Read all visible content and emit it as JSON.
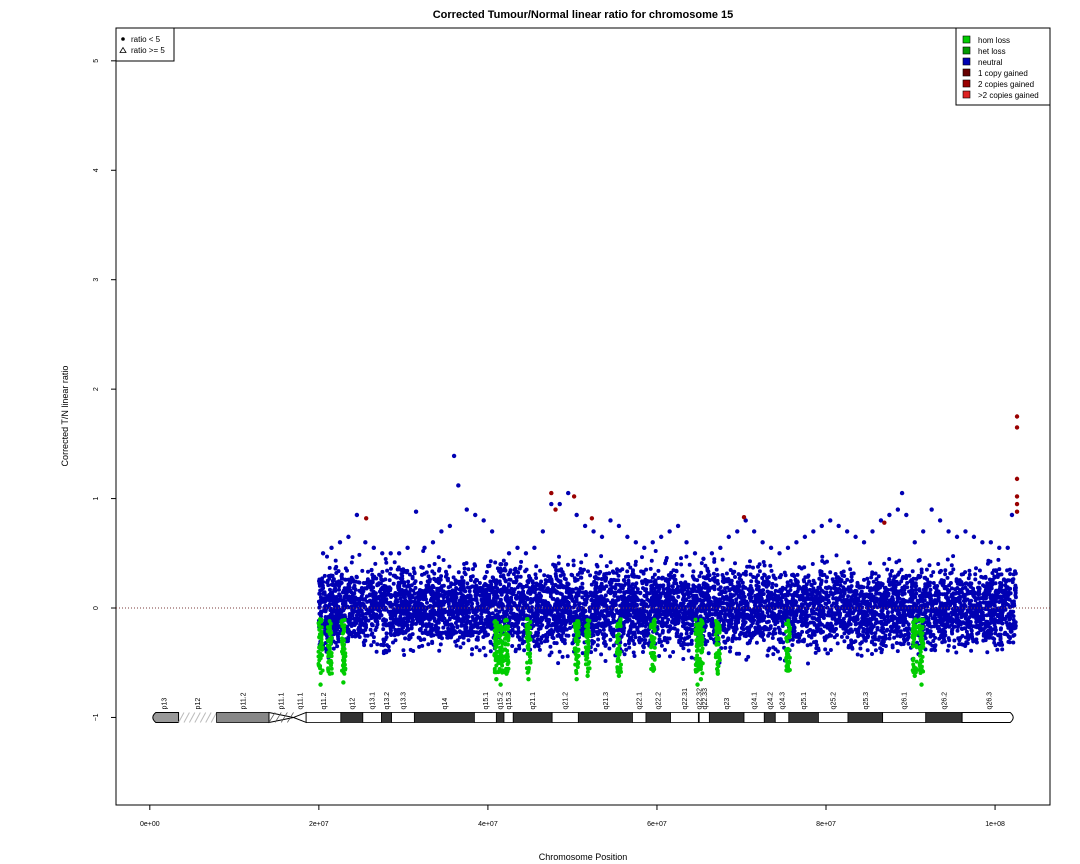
{
  "chart_data": {
    "type": "scatter",
    "title": "Corrected Tumour/Normal linear ratio for chromosome  15",
    "xlabel": "Chromosome Position",
    "ylabel": "Corrected T/N linear ratio",
    "xlim": [
      -4000000,
      106500000
    ],
    "ylim": [
      -1.8,
      5.3
    ],
    "xticks": [
      0,
      20000000,
      40000000,
      60000000,
      80000000,
      100000000
    ],
    "xtick_labels": [
      "0e+00",
      "2e+07",
      "4e+07",
      "6e+07",
      "8e+07",
      "1e+08"
    ],
    "yticks": [
      -1,
      0,
      1,
      2,
      3,
      4,
      5
    ],
    "ytick_labels": [
      "−1",
      "0",
      "1",
      "2",
      "3",
      "4",
      "5"
    ],
    "reference_line": 0,
    "data_x_range": [
      20000000,
      102500000
    ],
    "symbol_legend": {
      "position": "top-left",
      "items": [
        {
          "symbol": "dot",
          "label": "ratio < 5"
        },
        {
          "symbol": "triangle",
          "label": "ratio >= 5"
        }
      ]
    },
    "legend": {
      "position": "top-right",
      "items": [
        {
          "label": "hom loss",
          "color": "#00cc00"
        },
        {
          "label": "het loss",
          "color": "#009900"
        },
        {
          "label": "neutral",
          "color": "#0000b3"
        },
        {
          "label": "1 copy gained",
          "color": "#660000"
        },
        {
          "label": "2 copies gained",
          "color": "#990000"
        },
        {
          "label": ">2 copies gained",
          "color": "#dd2222"
        }
      ]
    },
    "series": [
      {
        "name": "neutral",
        "color": "#0000b3",
        "points": [
          [
            20500000,
            0.5
          ],
          [
            21500000,
            0.55
          ],
          [
            22500000,
            0.6
          ],
          [
            23500000,
            0.65
          ],
          [
            24500000,
            0.85
          ],
          [
            25500000,
            0.6
          ],
          [
            26500000,
            0.55
          ],
          [
            27500000,
            0.5
          ],
          [
            28500000,
            0.5
          ],
          [
            29500000,
            0.5
          ],
          [
            30500000,
            0.55
          ],
          [
            31500000,
            0.88
          ],
          [
            32500000,
            0.55
          ],
          [
            33500000,
            0.6
          ],
          [
            34500000,
            0.7
          ],
          [
            35500000,
            0.75
          ],
          [
            36000000,
            1.39
          ],
          [
            36500000,
            1.12
          ],
          [
            37500000,
            0.9
          ],
          [
            38500000,
            0.85
          ],
          [
            39500000,
            0.8
          ],
          [
            40500000,
            0.7
          ],
          [
            41500000,
            0.4
          ],
          [
            42500000,
            0.5
          ],
          [
            43500000,
            0.55
          ],
          [
            44500000,
            0.5
          ],
          [
            45500000,
            0.55
          ],
          [
            46500000,
            0.7
          ],
          [
            47500000,
            0.95
          ],
          [
            48500000,
            0.95
          ],
          [
            49500000,
            1.05
          ],
          [
            50500000,
            0.85
          ],
          [
            51500000,
            0.75
          ],
          [
            52500000,
            0.7
          ],
          [
            53500000,
            0.65
          ],
          [
            54500000,
            0.8
          ],
          [
            55500000,
            0.75
          ],
          [
            56500000,
            0.65
          ],
          [
            57500000,
            0.6
          ],
          [
            58500000,
            0.55
          ],
          [
            59500000,
            0.6
          ],
          [
            60500000,
            0.65
          ],
          [
            61500000,
            0.7
          ],
          [
            62500000,
            0.75
          ],
          [
            63500000,
            0.6
          ],
          [
            64500000,
            0.5
          ],
          [
            65500000,
            0.45
          ],
          [
            66500000,
            0.5
          ],
          [
            67500000,
            0.55
          ],
          [
            68500000,
            0.65
          ],
          [
            69500000,
            0.7
          ],
          [
            70500000,
            0.8
          ],
          [
            71500000,
            0.7
          ],
          [
            72500000,
            0.6
          ],
          [
            73500000,
            0.55
          ],
          [
            74500000,
            0.5
          ],
          [
            75500000,
            0.55
          ],
          [
            76500000,
            0.6
          ],
          [
            77500000,
            0.65
          ],
          [
            78500000,
            0.7
          ],
          [
            79500000,
            0.75
          ],
          [
            80500000,
            0.8
          ],
          [
            81500000,
            0.75
          ],
          [
            82500000,
            0.7
          ],
          [
            83500000,
            0.65
          ],
          [
            84500000,
            0.6
          ],
          [
            85500000,
            0.7
          ],
          [
            86500000,
            0.8
          ],
          [
            87500000,
            0.85
          ],
          [
            88500000,
            0.9
          ],
          [
            89000000,
            1.05
          ],
          [
            89500000,
            0.85
          ],
          [
            90500000,
            0.6
          ],
          [
            91500000,
            0.7
          ],
          [
            92500000,
            0.9
          ],
          [
            93500000,
            0.8
          ],
          [
            94500000,
            0.7
          ],
          [
            95500000,
            0.65
          ],
          [
            96500000,
            0.7
          ],
          [
            97500000,
            0.65
          ],
          [
            98500000,
            0.6
          ],
          [
            99500000,
            0.6
          ],
          [
            100500000,
            0.55
          ],
          [
            101500000,
            0.55
          ],
          [
            102000000,
            0.85
          ]
        ]
      },
      {
        "name": "hom loss / het loss",
        "color": "#00cc00",
        "points": [
          [
            20200000,
            -0.7
          ],
          [
            21300000,
            -0.6
          ],
          [
            22900000,
            -0.68
          ],
          [
            41000000,
            -0.65
          ],
          [
            41500000,
            -0.7
          ],
          [
            42200000,
            -0.6
          ],
          [
            44800000,
            -0.65
          ],
          [
            50500000,
            -0.65
          ],
          [
            51800000,
            -0.62
          ],
          [
            55500000,
            -0.62
          ],
          [
            59500000,
            -0.55
          ],
          [
            64800000,
            -0.7
          ],
          [
            65200000,
            -0.65
          ],
          [
            67200000,
            -0.6
          ],
          [
            75500000,
            -0.55
          ],
          [
            90500000,
            -0.62
          ],
          [
            91300000,
            -0.7
          ]
        ]
      },
      {
        "name": "2 copies gained",
        "color": "#990000",
        "points": [
          [
            25600000,
            0.82
          ],
          [
            47500000,
            1.05
          ],
          [
            48000000,
            0.9
          ],
          [
            50200000,
            1.02
          ],
          [
            52300000,
            0.82
          ],
          [
            70300000,
            0.83
          ],
          [
            86900000,
            0.78
          ],
          [
            102600000,
            1.75
          ],
          [
            102600000,
            1.65
          ],
          [
            102600000,
            1.18
          ],
          [
            102600000,
            1.02
          ],
          [
            102600000,
            0.95
          ],
          [
            102600000,
            0.88
          ]
        ]
      }
    ],
    "ideogram": {
      "y_value": -1,
      "bands": [
        {
          "label": "p13",
          "start": 0,
          "end": 3400000,
          "stain": "gvar"
        },
        {
          "label": "p12",
          "start": 3400000,
          "end": 7900000,
          "stain": "stalk"
        },
        {
          "label": "p11.2",
          "start": 7900000,
          "end": 14100000,
          "stain": "gpos50"
        },
        {
          "label": "p11.1",
          "start": 14100000,
          "end": 17000000,
          "stain": "acen"
        },
        {
          "label": "q11.1",
          "start": 17000000,
          "end": 18500000,
          "stain": "acen"
        },
        {
          "label": "q11.2",
          "start": 18500000,
          "end": 22600000,
          "stain": "gneg"
        },
        {
          "label": "q12",
          "start": 22600000,
          "end": 25200000,
          "stain": "gpos50"
        },
        {
          "label": "q13.1",
          "start": 25200000,
          "end": 27400000,
          "stain": "gneg"
        },
        {
          "label": "q13.2",
          "start": 27400000,
          "end": 28600000,
          "stain": "gpos50"
        },
        {
          "label": "q13.3",
          "start": 28600000,
          "end": 31300000,
          "stain": "gneg"
        },
        {
          "label": "q14",
          "start": 31300000,
          "end": 38400000,
          "stain": "gpos75"
        },
        {
          "label": "q15.1",
          "start": 38400000,
          "end": 41000000,
          "stain": "gneg"
        },
        {
          "label": "q15.2",
          "start": 41000000,
          "end": 41900000,
          "stain": "gpos25"
        },
        {
          "label": "q15.3",
          "start": 41900000,
          "end": 43000000,
          "stain": "gneg"
        },
        {
          "label": "q21.1",
          "start": 43000000,
          "end": 47600000,
          "stain": "gpos75"
        },
        {
          "label": "q21.2",
          "start": 47600000,
          "end": 50700000,
          "stain": "gneg"
        },
        {
          "label": "q21.3",
          "start": 50700000,
          "end": 57100000,
          "stain": "gpos75"
        },
        {
          "label": "q22.1",
          "start": 57100000,
          "end": 58700000,
          "stain": "gneg"
        },
        {
          "label": "q22.2",
          "start": 58700000,
          "end": 61600000,
          "stain": "gpos25"
        },
        {
          "label": "q22.31",
          "start": 61600000,
          "end": 64900000,
          "stain": "gneg"
        },
        {
          "label": "q22.32",
          "start": 64900000,
          "end": 65000000,
          "stain": "gpos25"
        },
        {
          "label": "q22.33",
          "start": 65000000,
          "end": 66200000,
          "stain": "gneg"
        },
        {
          "label": "q23",
          "start": 66200000,
          "end": 70300000,
          "stain": "gpos25"
        },
        {
          "label": "q24.1",
          "start": 70300000,
          "end": 72700000,
          "stain": "gneg"
        },
        {
          "label": "q24.2",
          "start": 72700000,
          "end": 74000000,
          "stain": "gpos25"
        },
        {
          "label": "q24.3",
          "start": 74000000,
          "end": 75600000,
          "stain": "gneg"
        },
        {
          "label": "q25.1",
          "start": 75600000,
          "end": 79100000,
          "stain": "gpos50"
        },
        {
          "label": "q25.2",
          "start": 79100000,
          "end": 82600000,
          "stain": "gneg"
        },
        {
          "label": "q25.3",
          "start": 82600000,
          "end": 86700000,
          "stain": "gpos50"
        },
        {
          "label": "q26.1",
          "start": 86700000,
          "end": 91800000,
          "stain": "gneg"
        },
        {
          "label": "q26.2",
          "start": 91800000,
          "end": 96100000,
          "stain": "gpos50"
        },
        {
          "label": "q26.3",
          "start": 96100000,
          "end": 102500000,
          "stain": "gneg"
        }
      ]
    }
  }
}
